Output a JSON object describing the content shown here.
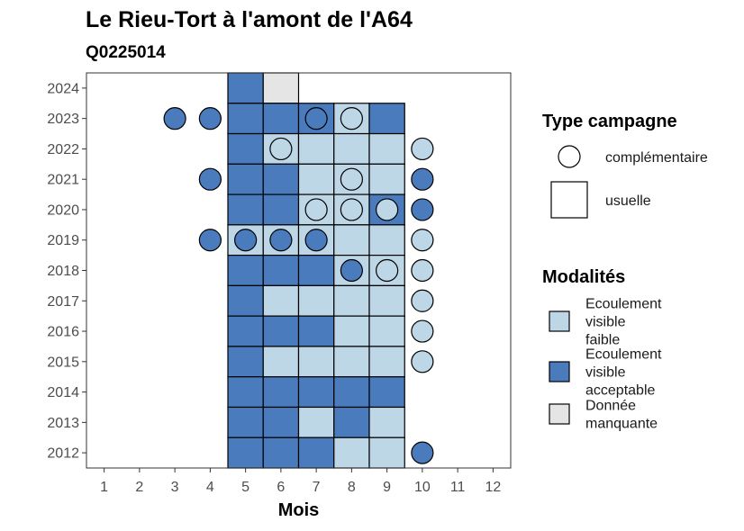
{
  "chart_data": {
    "type": "heatmap",
    "title": "Le Rieu-Tort à l'amont de l'A64",
    "subtitle": "Q0225014",
    "xlabel": "Mois",
    "ylabel": "",
    "x_ticks": [
      1,
      2,
      3,
      4,
      5,
      6,
      7,
      8,
      9,
      10,
      11,
      12
    ],
    "y_ticks": [
      2012,
      2013,
      2014,
      2015,
      2016,
      2017,
      2018,
      2019,
      2020,
      2021,
      2022,
      2023,
      2024
    ],
    "xlim": [
      0.5,
      12.5
    ],
    "ylim": [
      2011.5,
      2024.5
    ],
    "colors": {
      "Ecoulement visible faible": "#bdd7e7",
      "Ecoulement visible acceptable": "#4a7bbd",
      "Donnée manquante": "#e5e5e5"
    },
    "usuelle": [
      {
        "year": 2024,
        "month": 5,
        "modalite": "Ecoulement visible acceptable"
      },
      {
        "year": 2024,
        "month": 6,
        "modalite": "Donnée manquante"
      },
      {
        "year": 2023,
        "month": 5,
        "modalite": "Ecoulement visible acceptable"
      },
      {
        "year": 2023,
        "month": 6,
        "modalite": "Ecoulement visible acceptable"
      },
      {
        "year": 2023,
        "month": 7,
        "modalite": "Ecoulement visible acceptable"
      },
      {
        "year": 2023,
        "month": 8,
        "modalite": "Ecoulement visible faible"
      },
      {
        "year": 2023,
        "month": 9,
        "modalite": "Ecoulement visible acceptable"
      },
      {
        "year": 2022,
        "month": 5,
        "modalite": "Ecoulement visible acceptable"
      },
      {
        "year": 2022,
        "month": 6,
        "modalite": "Ecoulement visible faible"
      },
      {
        "year": 2022,
        "month": 7,
        "modalite": "Ecoulement visible faible"
      },
      {
        "year": 2022,
        "month": 8,
        "modalite": "Ecoulement visible faible"
      },
      {
        "year": 2022,
        "month": 9,
        "modalite": "Ecoulement visible faible"
      },
      {
        "year": 2021,
        "month": 5,
        "modalite": "Ecoulement visible acceptable"
      },
      {
        "year": 2021,
        "month": 6,
        "modalite": "Ecoulement visible acceptable"
      },
      {
        "year": 2021,
        "month": 7,
        "modalite": "Ecoulement visible faible"
      },
      {
        "year": 2021,
        "month": 8,
        "modalite": "Ecoulement visible faible"
      },
      {
        "year": 2021,
        "month": 9,
        "modalite": "Ecoulement visible faible"
      },
      {
        "year": 2020,
        "month": 5,
        "modalite": "Ecoulement visible acceptable"
      },
      {
        "year": 2020,
        "month": 6,
        "modalite": "Ecoulement visible acceptable"
      },
      {
        "year": 2020,
        "month": 7,
        "modalite": "Ecoulement visible faible"
      },
      {
        "year": 2020,
        "month": 8,
        "modalite": "Ecoulement visible faible"
      },
      {
        "year": 2020,
        "month": 9,
        "modalite": "Ecoulement visible acceptable"
      },
      {
        "year": 2019,
        "month": 5,
        "modalite": "Ecoulement visible faible"
      },
      {
        "year": 2019,
        "month": 6,
        "modalite": "Ecoulement visible faible"
      },
      {
        "year": 2019,
        "month": 7,
        "modalite": "Ecoulement visible faible"
      },
      {
        "year": 2019,
        "month": 8,
        "modalite": "Ecoulement visible faible"
      },
      {
        "year": 2019,
        "month": 9,
        "modalite": "Ecoulement visible faible"
      },
      {
        "year": 2018,
        "month": 5,
        "modalite": "Ecoulement visible acceptable"
      },
      {
        "year": 2018,
        "month": 6,
        "modalite": "Ecoulement visible acceptable"
      },
      {
        "year": 2018,
        "month": 7,
        "modalite": "Ecoulement visible acceptable"
      },
      {
        "year": 2018,
        "month": 8,
        "modalite": "Ecoulement visible faible"
      },
      {
        "year": 2018,
        "month": 9,
        "modalite": "Ecoulement visible faible"
      },
      {
        "year": 2017,
        "month": 5,
        "modalite": "Ecoulement visible acceptable"
      },
      {
        "year": 2017,
        "month": 6,
        "modalite": "Ecoulement visible faible"
      },
      {
        "year": 2017,
        "month": 7,
        "modalite": "Ecoulement visible faible"
      },
      {
        "year": 2017,
        "month": 8,
        "modalite": "Ecoulement visible faible"
      },
      {
        "year": 2017,
        "month": 9,
        "modalite": "Ecoulement visible faible"
      },
      {
        "year": 2016,
        "month": 5,
        "modalite": "Ecoulement visible acceptable"
      },
      {
        "year": 2016,
        "month": 6,
        "modalite": "Ecoulement visible acceptable"
      },
      {
        "year": 2016,
        "month": 7,
        "modalite": "Ecoulement visible acceptable"
      },
      {
        "year": 2016,
        "month": 8,
        "modalite": "Ecoulement visible faible"
      },
      {
        "year": 2016,
        "month": 9,
        "modalite": "Ecoulement visible faible"
      },
      {
        "year": 2015,
        "month": 5,
        "modalite": "Ecoulement visible acceptable"
      },
      {
        "year": 2015,
        "month": 6,
        "modalite": "Ecoulement visible faible"
      },
      {
        "year": 2015,
        "month": 7,
        "modalite": "Ecoulement visible faible"
      },
      {
        "year": 2015,
        "month": 8,
        "modalite": "Ecoulement visible faible"
      },
      {
        "year": 2015,
        "month": 9,
        "modalite": "Ecoulement visible faible"
      },
      {
        "year": 2014,
        "month": 5,
        "modalite": "Ecoulement visible acceptable"
      },
      {
        "year": 2014,
        "month": 6,
        "modalite": "Ecoulement visible acceptable"
      },
      {
        "year": 2014,
        "month": 7,
        "modalite": "Ecoulement visible acceptable"
      },
      {
        "year": 2014,
        "month": 8,
        "modalite": "Ecoulement visible acceptable"
      },
      {
        "year": 2014,
        "month": 9,
        "modalite": "Ecoulement visible acceptable"
      },
      {
        "year": 2013,
        "month": 5,
        "modalite": "Ecoulement visible acceptable"
      },
      {
        "year": 2013,
        "month": 6,
        "modalite": "Ecoulement visible acceptable"
      },
      {
        "year": 2013,
        "month": 7,
        "modalite": "Ecoulement visible faible"
      },
      {
        "year": 2013,
        "month": 8,
        "modalite": "Ecoulement visible acceptable"
      },
      {
        "year": 2013,
        "month": 9,
        "modalite": "Ecoulement visible faible"
      },
      {
        "year": 2012,
        "month": 5,
        "modalite": "Ecoulement visible acceptable"
      },
      {
        "year": 2012,
        "month": 6,
        "modalite": "Ecoulement visible acceptable"
      },
      {
        "year": 2012,
        "month": 7,
        "modalite": "Ecoulement visible acceptable"
      },
      {
        "year": 2012,
        "month": 8,
        "modalite": "Ecoulement visible faible"
      },
      {
        "year": 2012,
        "month": 9,
        "modalite": "Ecoulement visible faible"
      }
    ],
    "complementaire": [
      {
        "year": 2023,
        "month": 3,
        "modalite": "Ecoulement visible acceptable"
      },
      {
        "year": 2023,
        "month": 4,
        "modalite": "Ecoulement visible acceptable"
      },
      {
        "year": 2023,
        "month": 7,
        "modalite": "Ecoulement visible acceptable"
      },
      {
        "year": 2023,
        "month": 8,
        "modalite": "Ecoulement visible faible"
      },
      {
        "year": 2022,
        "month": 6,
        "modalite": "Ecoulement visible faible"
      },
      {
        "year": 2022,
        "month": 10,
        "modalite": "Ecoulement visible faible"
      },
      {
        "year": 2021,
        "month": 4,
        "modalite": "Ecoulement visible acceptable"
      },
      {
        "year": 2021,
        "month": 8,
        "modalite": "Ecoulement visible faible"
      },
      {
        "year": 2021,
        "month": 10,
        "modalite": "Ecoulement visible acceptable"
      },
      {
        "year": 2020,
        "month": 7,
        "modalite": "Ecoulement visible faible"
      },
      {
        "year": 2020,
        "month": 8,
        "modalite": "Ecoulement visible faible"
      },
      {
        "year": 2020,
        "month": 9,
        "modalite": "Ecoulement visible faible"
      },
      {
        "year": 2020,
        "month": 10,
        "modalite": "Ecoulement visible acceptable"
      },
      {
        "year": 2019,
        "month": 4,
        "modalite": "Ecoulement visible acceptable"
      },
      {
        "year": 2019,
        "month": 5,
        "modalite": "Ecoulement visible acceptable"
      },
      {
        "year": 2019,
        "month": 6,
        "modalite": "Ecoulement visible acceptable"
      },
      {
        "year": 2019,
        "month": 7,
        "modalite": "Ecoulement visible acceptable"
      },
      {
        "year": 2019,
        "month": 10,
        "modalite": "Ecoulement visible faible"
      },
      {
        "year": 2018,
        "month": 8,
        "modalite": "Ecoulement visible acceptable"
      },
      {
        "year": 2018,
        "month": 9,
        "modalite": "Ecoulement visible faible"
      },
      {
        "year": 2018,
        "month": 10,
        "modalite": "Ecoulement visible faible"
      },
      {
        "year": 2017,
        "month": 10,
        "modalite": "Ecoulement visible faible"
      },
      {
        "year": 2016,
        "month": 10,
        "modalite": "Ecoulement visible faible"
      },
      {
        "year": 2015,
        "month": 10,
        "modalite": "Ecoulement visible faible"
      },
      {
        "year": 2012,
        "month": 10,
        "modalite": "Ecoulement visible acceptable"
      }
    ],
    "legend": {
      "type_title": "Type campagne",
      "type_items": [
        "complémentaire",
        "usuelle"
      ],
      "modalites_title": "Modalités",
      "modalites_items": [
        {
          "key": "Ecoulement visible faible",
          "lines": [
            "Ecoulement",
            "visible",
            "faible"
          ]
        },
        {
          "key": "Ecoulement visible acceptable",
          "lines": [
            "Ecoulement",
            "visible",
            "acceptable"
          ]
        },
        {
          "key": "Donnée manquante",
          "lines": [
            "Donnée",
            "manquante"
          ]
        }
      ],
      "placement": "right"
    }
  }
}
